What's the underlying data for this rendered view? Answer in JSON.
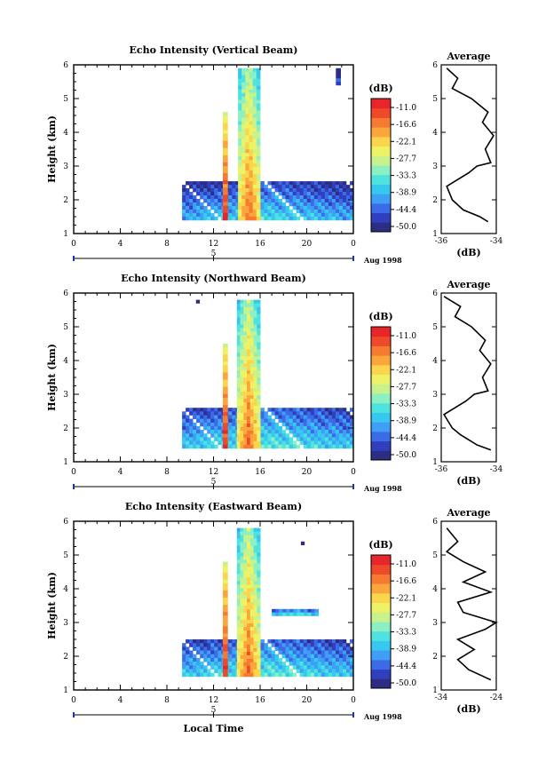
{
  "colors": {
    "scale": [
      "#2c2e83",
      "#2f3fbe",
      "#3b6be6",
      "#3e9ff5",
      "#37c8ef",
      "#4fe3e0",
      "#8df0c2",
      "#c8f28c",
      "#eef266",
      "#fbd54b",
      "#fba63d",
      "#f77a32",
      "#ee4a2a",
      "#e8262a"
    ],
    "line": "#000000",
    "frame": "#000000",
    "date_tick": "#2233aa"
  },
  "chart_data": [
    {
      "type": "heatmap",
      "title": "Echo Intensity (Vertical Beam)",
      "xlabel": "",
      "ylabel": "Height (km)",
      "x_ticks": [
        "0",
        "4",
        "8",
        "12",
        "16",
        "20",
        "0"
      ],
      "y_ticks": [
        "1",
        "2",
        "3",
        "4",
        "5",
        "6"
      ],
      "xlim": [
        0,
        24
      ],
      "ylim": [
        1,
        6
      ],
      "date_ticks": [
        "5"
      ],
      "date_label": "Aug 1998",
      "colorbar": {
        "label": "(dB)",
        "ticks": [
          "-11.0",
          "-16.6",
          "-22.1",
          "-27.7",
          "-33.3",
          "-38.9",
          "-44.4",
          "-50.0"
        ]
      },
      "regions": [
        {
          "x": [
            9.3,
            24
          ],
          "y": [
            1.4,
            2.55
          ],
          "level": -38
        },
        {
          "x": [
            12.8,
            13.2
          ],
          "y": [
            1.4,
            4.6
          ],
          "level": -12
        },
        {
          "x": [
            14.1,
            16
          ],
          "y": [
            1.4,
            5.9
          ],
          "level": -15
        },
        {
          "x": [
            22.5,
            22.9
          ],
          "y": [
            5.4,
            5.9
          ],
          "level": -47
        }
      ],
      "average": {
        "title": "Average",
        "xlabel": "(dB)",
        "x_ticks": [
          "-36",
          "-34"
        ],
        "xlim": [
          -36,
          -34
        ],
        "profile": [
          [
            1.35,
            -34.3
          ],
          [
            1.5,
            -34.6
          ],
          [
            1.7,
            -35.2
          ],
          [
            2.0,
            -35.6
          ],
          [
            2.4,
            -35.8
          ],
          [
            2.8,
            -35.0
          ],
          [
            3.0,
            -34.7
          ],
          [
            3.1,
            -34.2
          ],
          [
            3.5,
            -34.4
          ],
          [
            3.9,
            -34.1
          ],
          [
            4.3,
            -34.5
          ],
          [
            4.6,
            -34.3
          ],
          [
            5.0,
            -34.9
          ],
          [
            5.3,
            -35.6
          ],
          [
            5.6,
            -35.4
          ],
          [
            5.9,
            -35.8
          ]
        ]
      }
    },
    {
      "type": "heatmap",
      "title": "Echo Intensity (Northward Beam)",
      "xlabel": "",
      "ylabel": "Height (km)",
      "x_ticks": [
        "0",
        "4",
        "8",
        "12",
        "16",
        "20",
        "0"
      ],
      "y_ticks": [
        "1",
        "2",
        "3",
        "4",
        "5",
        "6"
      ],
      "xlim": [
        0,
        24
      ],
      "ylim": [
        1,
        6
      ],
      "date_ticks": [
        "5"
      ],
      "date_label": "Aug 1998",
      "colorbar": {
        "label": "(dB)",
        "ticks": [
          "-11.0",
          "-16.6",
          "-22.1",
          "-27.7",
          "-33.3",
          "-38.9",
          "-44.4",
          "-50.0"
        ]
      },
      "regions": [
        {
          "x": [
            9.3,
            24
          ],
          "y": [
            1.4,
            2.6
          ],
          "level": -36
        },
        {
          "x": [
            12.8,
            13.2
          ],
          "y": [
            1.4,
            4.5
          ],
          "level": -12
        },
        {
          "x": [
            14.0,
            16
          ],
          "y": [
            1.4,
            5.8
          ],
          "level": -15
        },
        {
          "x": [
            10.5,
            10.8
          ],
          "y": [
            5.7,
            5.8
          ],
          "level": -44
        }
      ],
      "average": {
        "title": "Average",
        "xlabel": "(dB)",
        "x_ticks": [
          "-36",
          "-34"
        ],
        "xlim": [
          -36,
          -34
        ],
        "profile": [
          [
            1.35,
            -34.2
          ],
          [
            1.5,
            -34.7
          ],
          [
            1.8,
            -35.3
          ],
          [
            2.0,
            -35.6
          ],
          [
            2.4,
            -35.9
          ],
          [
            2.8,
            -35.1
          ],
          [
            3.0,
            -34.8
          ],
          [
            3.1,
            -34.3
          ],
          [
            3.5,
            -34.5
          ],
          [
            3.9,
            -34.2
          ],
          [
            4.3,
            -34.6
          ],
          [
            4.6,
            -34.4
          ],
          [
            5.0,
            -34.9
          ],
          [
            5.3,
            -35.5
          ],
          [
            5.6,
            -35.3
          ],
          [
            5.9,
            -35.9
          ]
        ]
      }
    },
    {
      "type": "heatmap",
      "title": "Echo Intensity (Eastward Beam)",
      "xlabel": "Local Time",
      "ylabel": "Height (km)",
      "x_ticks": [
        "0",
        "4",
        "8",
        "12",
        "16",
        "20",
        "0"
      ],
      "y_ticks": [
        "1",
        "2",
        "3",
        "4",
        "5",
        "6"
      ],
      "xlim": [
        0,
        24
      ],
      "ylim": [
        1,
        6
      ],
      "date_ticks": [
        "5"
      ],
      "date_label": "Aug 1998",
      "colorbar": {
        "label": "(dB)",
        "ticks": [
          "-11.0",
          "-16.6",
          "-22.1",
          "-27.7",
          "-33.3",
          "-38.9",
          "-44.4",
          "-50.0"
        ]
      },
      "regions": [
        {
          "x": [
            9.3,
            24
          ],
          "y": [
            1.4,
            2.5
          ],
          "level": -36
        },
        {
          "x": [
            12.8,
            13.2
          ],
          "y": [
            1.4,
            4.8
          ],
          "level": -12
        },
        {
          "x": [
            14.0,
            16
          ],
          "y": [
            1.4,
            5.8
          ],
          "level": -15
        },
        {
          "x": [
            17,
            21
          ],
          "y": [
            3.2,
            3.4
          ],
          "level": -33
        },
        {
          "x": [
            19.5,
            19.8
          ],
          "y": [
            5.3,
            5.4
          ],
          "level": -46
        }
      ],
      "average": {
        "title": "Average",
        "xlabel": "(dB)",
        "x_ticks": [
          "-34",
          "-24"
        ],
        "xlim": [
          -34,
          -24
        ],
        "profile": [
          [
            1.3,
            -25
          ],
          [
            1.6,
            -29
          ],
          [
            1.9,
            -31
          ],
          [
            2.2,
            -28
          ],
          [
            2.5,
            -31
          ],
          [
            2.8,
            -26
          ],
          [
            3.0,
            -24
          ],
          [
            3.3,
            -30
          ],
          [
            3.6,
            -31
          ],
          [
            3.9,
            -25
          ],
          [
            4.2,
            -30
          ],
          [
            4.5,
            -26
          ],
          [
            4.8,
            -30
          ],
          [
            5.1,
            -33
          ],
          [
            5.4,
            -31
          ],
          [
            5.8,
            -33
          ]
        ]
      }
    }
  ]
}
